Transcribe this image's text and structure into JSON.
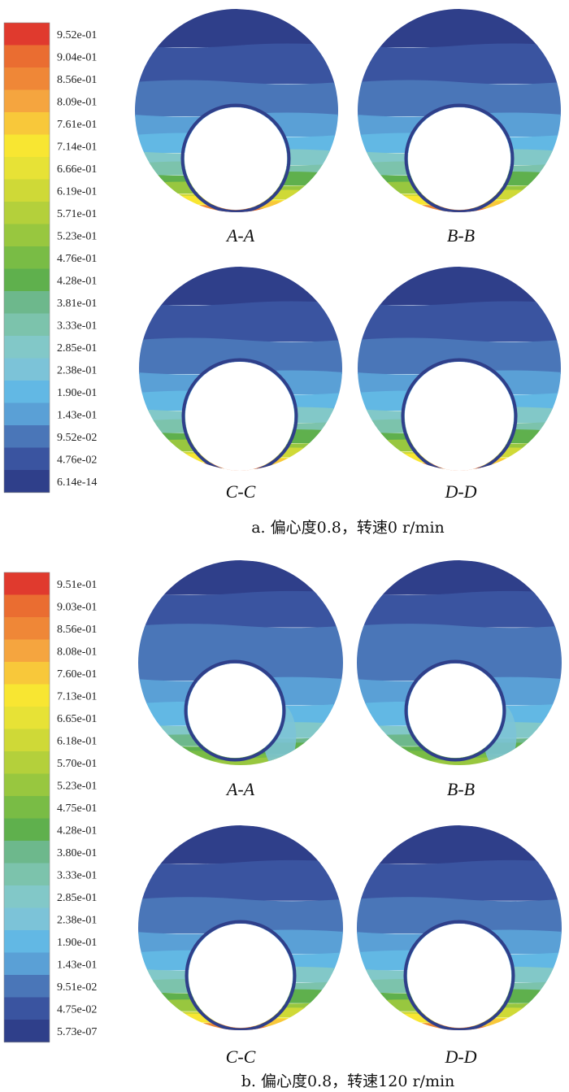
{
  "colormap": [
    "#2f3f8a",
    "#3a54a0",
    "#4a76b8",
    "#5aa0d6",
    "#62b8e4",
    "#7cc3d8",
    "#82c8c8",
    "#7cc3ac",
    "#6db88c",
    "#5fb04d",
    "#79bc45",
    "#98c73f",
    "#b4d03b",
    "#cfd937",
    "#e7e236",
    "#f8e632",
    "#f8c83a",
    "#f5a53f",
    "#ef8737",
    "#ea6d31",
    "#e03a2e"
  ],
  "panels": [
    {
      "caption": "a. 偏心度0.8，转速0 r/min",
      "legend_values": [
        "9.52e-01",
        "9.04e-01",
        "8.56e-01",
        "8.09e-01",
        "7.61e-01",
        "7.14e-01",
        "6.66e-01",
        "6.19e-01",
        "5.71e-01",
        "5.23e-01",
        "4.76e-01",
        "4.28e-01",
        "3.81e-01",
        "3.33e-01",
        "2.85e-01",
        "2.38e-01",
        "1.90e-01",
        "1.43e-01",
        "9.52e-02",
        "4.76e-02",
        "6.14e-14"
      ],
      "sections": [
        {
          "label": "A-A",
          "swirl": 0
        },
        {
          "label": "B-B",
          "swirl": 0
        },
        {
          "label": "C-C",
          "swirl": 0
        },
        {
          "label": "D-D",
          "swirl": 0
        }
      ]
    },
    {
      "caption": "b. 偏心度0.8，转速120 r/min",
      "legend_values": [
        "9.51e-01",
        "9.03e-01",
        "8.56e-01",
        "8.08e-01",
        "7.60e-01",
        "7.13e-01",
        "6.65e-01",
        "6.18e-01",
        "5.70e-01",
        "5.23e-01",
        "4.75e-01",
        "4.28e-01",
        "3.80e-01",
        "3.33e-01",
        "2.85e-01",
        "2.38e-01",
        "1.90e-01",
        "1.43e-01",
        "9.51e-02",
        "4.75e-02",
        "5.73e-07"
      ],
      "sections": [
        {
          "label": "A-A",
          "swirl": 1
        },
        {
          "label": "B-B",
          "swirl": 1
        },
        {
          "label": "C-C",
          "swirl": 0
        },
        {
          "label": "D-D",
          "swirl": 0
        }
      ]
    }
  ]
}
